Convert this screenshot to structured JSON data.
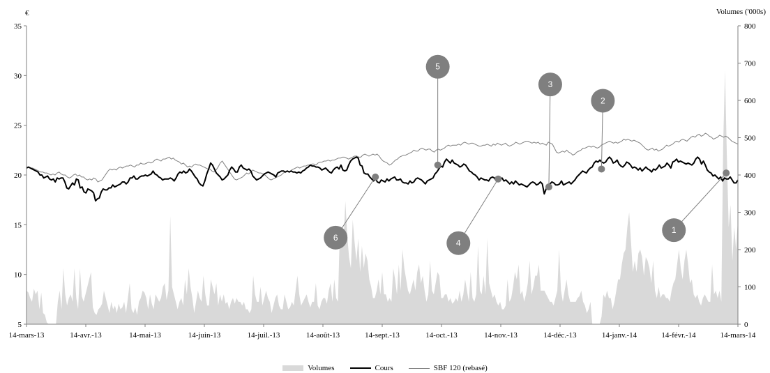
{
  "chart_data": {
    "type": "line",
    "y_left_label": "€",
    "y_right_label": "Volumes ('000s)",
    "y_left_ticks": [
      "5",
      "10",
      "15",
      "20",
      "25",
      "30",
      "35"
    ],
    "y_left_range": [
      5,
      35
    ],
    "y_right_ticks": [
      "0",
      "100",
      "200",
      "300",
      "400",
      "500",
      "600",
      "700",
      "800"
    ],
    "y_right_range": [
      0,
      800
    ],
    "x_ticks": [
      "14-mars-13",
      "14-avr.-13",
      "14-mai-13",
      "14-juin-13",
      "14-juil.-13",
      "14-août-13",
      "14-sept.-13",
      "14-oct.-13",
      "14-nov.-13",
      "14-déc.-13",
      "14-janv.-14",
      "14-févr.-14",
      "14-mars-14"
    ],
    "legend_position": "bottom",
    "colors": {
      "volumes": "#d9d9d9",
      "cours": "#000000",
      "sbf": "#808080",
      "marker": "#7f7f7f"
    },
    "series": [
      {
        "name": "Volumes",
        "kind": "area",
        "axis": "right",
        "values": [
          90,
          85,
          70,
          60,
          95,
          80,
          90,
          40,
          85,
          30,
          25,
          5,
          0,
          0,
          0,
          0,
          0,
          60,
          90,
          40,
          150,
          80,
          50,
          70,
          80,
          60,
          150,
          70,
          40,
          150,
          75,
          60,
          80,
          100,
          120,
          140,
          45,
          30,
          25,
          40,
          45,
          55,
          90,
          70,
          50,
          30,
          60,
          40,
          50,
          30,
          55,
          40,
          45,
          60,
          30,
          70,
          110,
          40,
          30,
          45,
          25,
          60,
          70,
          90,
          85,
          70,
          40,
          80,
          55,
          40,
          80,
          70,
          60,
          70,
          100,
          110,
          65,
          90,
          290,
          100,
          80,
          60,
          40,
          60,
          70,
          50,
          120,
          80,
          150,
          100,
          70,
          30,
          60,
          90,
          70,
          60,
          130,
          80,
          50,
          50,
          120,
          100,
          80,
          110,
          50,
          80,
          60,
          80,
          55,
          60,
          40,
          60,
          70,
          55,
          70,
          60,
          60,
          50,
          60,
          40,
          40,
          30,
          40,
          130,
          80,
          60,
          60,
          100,
          50,
          70,
          90,
          70,
          60,
          30,
          50,
          70,
          80,
          50,
          40,
          40,
          80,
          60,
          40,
          45,
          60,
          50,
          90,
          130,
          80,
          50,
          60,
          70,
          80,
          60,
          45,
          60,
          60,
          110,
          50,
          40,
          60,
          70,
          70,
          55,
          90,
          110,
          60,
          120,
          70,
          60,
          250,
          260,
          220,
          330,
          240,
          180,
          150,
          280,
          220,
          170,
          230,
          140,
          210,
          150,
          190,
          170,
          120,
          100,
          70,
          70,
          90,
          120,
          80,
          140,
          80,
          80,
          60,
          70,
          60,
          150,
          120,
          80,
          160,
          90,
          200,
          150,
          120,
          90,
          80,
          100,
          120,
          90,
          140,
          160,
          110,
          130,
          90,
          60,
          80,
          170,
          90,
          80,
          110,
          140,
          130,
          70,
          70,
          80,
          80,
          60,
          70,
          55,
          60,
          70,
          60,
          90,
          60,
          80,
          120,
          90,
          60,
          140,
          70,
          60,
          80,
          210,
          90,
          80,
          130,
          80,
          230,
          110,
          90,
          70,
          80,
          60,
          50,
          60,
          40,
          40,
          50,
          120,
          60,
          70,
          100,
          140,
          120,
          160,
          80,
          90,
          60,
          80,
          110,
          170,
          80,
          100,
          130,
          130,
          160,
          90,
          90,
          90,
          80,
          70,
          60,
          60,
          50,
          70,
          90,
          200,
          90,
          60,
          90,
          120,
          80,
          60,
          60,
          60,
          60,
          70,
          75,
          90,
          60,
          50,
          30,
          40,
          60,
          0,
          0,
          0,
          0,
          0,
          20,
          80,
          70,
          90,
          70,
          70,
          40,
          60,
          90,
          120,
          120,
          160,
          190,
          200,
          260,
          300,
          220,
          140,
          170,
          140,
          190,
          200,
          180,
          130,
          180,
          170,
          150,
          110,
          170,
          90,
          70,
          100,
          70,
          80,
          80,
          70,
          70,
          60,
          90,
          110,
          120,
          160,
          200,
          150,
          120,
          170,
          200,
          160,
          110,
          120,
          80,
          70,
          80,
          60,
          50,
          70,
          80,
          70,
          60,
          60,
          160,
          80,
          90,
          70,
          90,
          60,
          480,
          680,
          450,
          260,
          320,
          170,
          260,
          200,
          280
        ]
      },
      {
        "name": "Cours",
        "kind": "line",
        "axis": "left",
        "values": [
          20.7,
          20.8,
          20.7,
          20.6,
          20.5,
          20.4,
          20.3,
          20.0,
          20.0,
          19.7,
          19.8,
          19.9,
          19.6,
          19.5,
          19.6,
          19.3,
          19.7,
          19.6,
          19.7,
          19.7,
          19.3,
          18.7,
          18.6,
          18.9,
          19.2,
          19.0,
          19.6,
          19.5,
          18.7,
          18.8,
          18.3,
          18.2,
          18.6,
          18.5,
          18.4,
          18.2,
          17.4,
          17.6,
          17.7,
          18.3,
          18.6,
          18.5,
          18.5,
          18.7,
          18.7,
          19.0,
          18.8,
          18.9,
          19.0,
          19.1,
          19.3,
          19.3,
          19.1,
          19.3,
          19.7,
          19.7,
          19.9,
          19.6,
          19.6,
          19.8,
          19.9,
          19.9,
          20.0,
          19.9,
          20.0,
          20.1,
          20.4,
          20.1,
          20.0,
          19.8,
          19.7,
          19.5,
          19.6,
          19.6,
          19.6,
          19.7,
          19.6,
          19.4,
          19.7,
          20.1,
          20.3,
          20.2,
          20.4,
          20.2,
          20.3,
          20.6,
          20.4,
          20.1,
          19.8,
          19.6,
          19.2,
          19.0,
          18.9,
          19.4,
          20.1,
          20.6,
          21.2,
          21.0,
          20.6,
          20.2,
          20.0,
          19.8,
          19.5,
          19.6,
          19.8,
          20.0,
          20.5,
          20.8,
          20.6,
          20.3,
          20.3,
          20.8,
          21.0,
          20.7,
          20.6,
          20.5,
          20.6,
          20.4,
          19.9,
          19.7,
          19.5,
          19.6,
          19.7,
          19.9,
          20.1,
          20.2,
          20.3,
          20.2,
          20.1,
          20.0,
          19.8,
          20.2,
          20.3,
          20.4,
          20.4,
          20.3,
          20.4,
          20.3,
          20.4,
          20.3,
          20.3,
          20.2,
          20.3,
          20.2,
          20.4,
          20.5,
          20.7,
          20.8,
          21.0,
          20.9,
          20.9,
          20.8,
          20.8,
          20.7,
          20.5,
          20.6,
          20.7,
          20.5,
          20.3,
          20.2,
          20.5,
          20.7,
          20.8,
          20.6,
          21.0,
          20.5,
          20.4,
          20.5,
          21.0,
          21.4,
          21.6,
          21.7,
          21.8,
          21.7,
          21.0,
          20.9,
          20.2,
          20.1,
          20.1,
          19.8,
          19.6,
          19.4,
          19.6,
          19.3,
          19.2,
          19.5,
          19.4,
          19.3,
          19.6,
          19.4,
          19.6,
          19.7,
          19.8,
          19.5,
          19.5,
          19.6,
          19.3,
          19.2,
          19.2,
          19.1,
          19.4,
          19.2,
          19.3,
          19.6,
          19.7,
          19.6,
          19.5,
          19.3,
          19.1,
          19.4,
          19.5,
          19.6,
          19.7,
          20.1,
          20.3,
          20.6,
          20.9,
          20.8,
          21.3,
          21.6,
          21.4,
          21.2,
          21.5,
          21.2,
          21.1,
          21.0,
          20.8,
          20.9,
          21.1,
          21.0,
          20.7,
          20.4,
          20.3,
          20.1,
          20.0,
          19.8,
          19.5,
          19.7,
          19.6,
          19.5,
          19.5,
          19.4,
          19.7,
          19.8,
          19.7,
          19.4,
          19.6,
          19.5,
          19.7,
          19.4,
          19.5,
          19.3,
          19.1,
          19.3,
          19.1,
          19.4,
          19.2,
          19.0,
          19.1,
          19.0,
          18.9,
          18.8,
          19.0,
          19.2,
          19.3,
          19.2,
          19.0,
          19.1,
          19.3,
          19.1,
          18.1,
          18.6,
          18.9,
          19.1,
          19.3,
          19.2,
          19.0,
          19.0,
          19.1,
          19.4,
          19.0,
          19.1,
          19.2,
          19.3,
          19.1,
          19.3,
          19.5,
          19.8,
          20.0,
          20.2,
          20.4,
          20.3,
          20.2,
          20.5,
          20.7,
          20.8,
          21.2,
          21.4,
          21.3,
          21.5,
          21.3,
          21.2,
          21.3,
          21.6,
          21.8,
          21.6,
          21.2,
          21.3,
          21.5,
          21.1,
          20.9,
          20.8,
          21.0,
          21.3,
          21.2,
          21.0,
          20.7,
          20.8,
          20.7,
          20.5,
          20.7,
          20.4,
          20.6,
          20.8,
          20.6,
          20.5,
          20.3,
          20.6,
          20.5,
          20.7,
          21.0,
          20.7,
          20.8,
          20.9,
          21.2,
          21.0,
          20.7,
          21.3,
          21.4,
          21.6,
          21.3,
          21.4,
          21.3,
          21.2,
          21.1,
          21.2,
          21.1,
          21.0,
          21.2,
          21.6,
          21.8,
          21.6,
          21.1,
          21.4,
          21.0,
          20.5,
          20.3,
          20.2,
          19.9,
          20.0,
          19.8,
          19.6,
          19.8,
          19.4,
          19.7,
          19.6,
          19.6,
          19.8,
          19.5,
          19.2,
          19.2,
          19.5
        ]
      },
      {
        "name": "SBF 120 (rebasé)",
        "kind": "line",
        "axis": "left",
        "values": [
          20.8,
          20.8,
          20.7,
          20.7,
          20.6,
          20.5,
          20.4,
          20.3,
          20.3,
          20.2,
          20.2,
          20.1,
          20.0,
          20.1,
          20.0,
          20.2,
          20.3,
          20.1,
          20.0,
          20.0,
          19.8,
          19.7,
          19.8,
          20.0,
          20.1,
          19.9,
          20.0,
          19.8,
          19.8,
          19.6,
          19.5,
          19.6,
          19.5,
          19.7,
          19.6,
          19.3,
          19.4,
          19.5,
          19.8,
          20.1,
          20.4,
          20.6,
          20.5,
          20.6,
          20.5,
          20.7,
          20.8,
          20.7,
          20.8,
          20.9,
          20.9,
          21.0,
          20.9,
          20.8,
          21.0,
          21.0,
          21.2,
          21.1,
          21.1,
          21.2,
          21.3,
          21.2,
          21.3,
          21.5,
          21.6,
          21.5,
          21.4,
          21.6,
          21.6,
          21.7,
          21.8,
          21.6,
          21.7,
          21.5,
          21.4,
          21.3,
          21.1,
          21.2,
          21.0,
          20.8,
          20.9,
          20.8,
          21.0,
          21.1,
          21.0,
          21.0,
          20.9,
          20.8,
          20.7,
          20.6,
          20.6,
          20.4,
          20.3,
          20.5,
          20.8,
          21.2,
          21.4,
          21.1,
          20.8,
          20.5,
          20.2,
          19.9,
          19.6,
          19.5,
          19.6,
          19.7,
          19.8,
          20.0,
          20.2,
          20.1,
          20.3,
          20.5,
          20.4,
          20.3,
          20.2,
          20.2,
          20.1,
          20.0,
          19.8,
          19.6,
          19.5,
          19.6,
          19.7,
          19.8,
          19.9,
          20.0,
          20.2,
          20.3,
          20.4,
          20.3,
          20.5,
          20.6,
          20.7,
          20.8,
          20.7,
          20.8,
          20.9,
          20.9,
          21.0,
          21.0,
          21.1,
          21.1,
          21.0,
          21.2,
          21.3,
          21.3,
          21.4,
          21.4,
          21.5,
          21.4,
          21.5,
          21.5,
          21.6,
          21.7,
          21.7,
          21.8,
          21.8,
          21.7,
          21.6,
          21.7,
          21.8,
          21.9,
          21.9,
          21.8,
          21.8,
          22.0,
          22.1,
          22.0,
          21.9,
          22.0,
          22.1,
          22.0,
          22.1,
          21.9,
          21.6,
          21.4,
          21.3,
          21.2,
          21.0,
          21.1,
          21.3,
          21.5,
          21.6,
          21.8,
          21.9,
          22.0,
          22.0,
          22.1,
          22.2,
          22.3,
          22.5,
          22.4,
          22.4,
          22.6,
          22.7,
          22.6,
          22.5,
          22.6,
          22.6,
          22.4,
          22.3,
          22.5,
          22.6,
          22.5,
          22.6,
          22.7,
          22.9,
          23.0,
          22.9,
          23.0,
          23.0,
          23.0,
          23.1,
          23.0,
          23.2,
          23.3,
          23.2,
          23.1,
          23.2,
          23.2,
          23.1,
          23.0,
          22.9,
          22.9,
          23.0,
          23.0,
          23.1,
          23.0,
          22.9,
          23.1,
          23.0,
          23.2,
          23.1,
          23.0,
          23.1,
          23.2,
          23.0,
          22.9,
          23.0,
          23.1,
          23.3,
          23.2,
          23.1,
          23.2,
          23.3,
          23.4,
          23.4,
          23.3,
          23.2,
          23.3,
          23.2,
          23.3,
          23.1,
          23.2,
          23.1,
          23.0,
          23.3,
          23.2,
          23.1,
          22.7,
          22.3,
          22.2,
          22.3,
          22.4,
          22.3,
          22.5,
          22.3,
          22.2,
          22.0,
          22.1,
          22.3,
          22.4,
          22.5,
          22.7,
          22.7,
          22.8,
          22.9,
          22.8,
          22.9,
          22.8,
          22.7,
          22.8,
          23.0,
          23.1,
          23.2,
          23.3,
          23.4,
          23.3,
          23.2,
          23.3,
          23.2,
          23.3,
          23.4,
          23.6,
          23.5,
          23.6,
          23.5,
          23.4,
          23.5,
          23.4,
          23.3,
          23.2,
          23.0,
          22.8,
          22.6,
          22.5,
          22.6,
          22.7,
          22.5,
          22.6,
          22.4,
          22.5,
          22.6,
          22.8,
          23.0,
          22.9,
          23.0,
          23.1,
          23.3,
          23.4,
          23.3,
          23.5,
          23.6,
          23.5,
          23.4,
          23.6,
          23.8,
          23.9,
          23.8,
          24.0,
          24.1,
          23.9,
          24.0,
          24.2,
          24.1,
          23.9,
          23.8,
          23.6,
          23.7,
          23.8,
          24.0,
          23.9,
          23.8,
          23.9,
          23.8,
          23.6,
          23.4,
          23.3,
          23.2,
          23.1
        ]
      }
    ],
    "annotations": [
      {
        "label": "1",
        "x_date": "2014-03-08",
        "y_value": 20.2
      },
      {
        "label": "2",
        "x_date": "2014-01-03",
        "y_value": 20.6
      },
      {
        "label": "3",
        "x_date": "2013-12-07",
        "y_value": 18.8
      },
      {
        "label": "4",
        "x_date": "2013-11-11",
        "y_value": 19.6
      },
      {
        "label": "5",
        "x_date": "2013-10-11",
        "y_value": 21.0
      },
      {
        "label": "6",
        "x_date": "2013-09-09",
        "y_value": 19.8
      }
    ]
  },
  "legend": {
    "volumes": "Volumes",
    "cours": "Cours",
    "sbf": "SBF 120 (rebasé)"
  }
}
